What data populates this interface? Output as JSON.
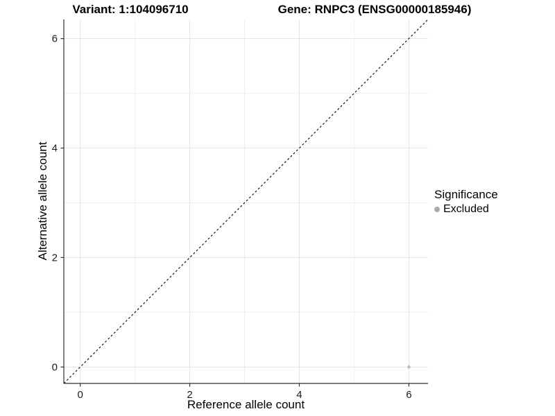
{
  "header": {
    "title_variant": "Variant: 1:104096710",
    "title_gene": "Gene: RNPC3 (ENSG00000185946)"
  },
  "chart_data": {
    "type": "scatter",
    "title_left": "Variant: 1:104096710",
    "title_right": "Gene: RNPC3 (ENSG00000185946)",
    "xlabel": "Reference allele count",
    "ylabel": "Alternative allele count",
    "xlim": [
      -0.3,
      6.35
    ],
    "ylim": [
      -0.3,
      6.35
    ],
    "xticks": [
      0,
      2,
      4,
      6
    ],
    "yticks": [
      0,
      2,
      4,
      6
    ],
    "grid": {
      "major_at": [
        0,
        2,
        4,
        6
      ],
      "minor_at": [
        1,
        3,
        5
      ],
      "visible": true
    },
    "points": [
      {
        "x": 6,
        "y": 0,
        "series": "Excluded"
      }
    ],
    "identity_line": {
      "slope": 1,
      "intercept": 0,
      "style": "dashed"
    },
    "legend": {
      "title": "Significance",
      "position": "right",
      "items": [
        {
          "label": "Excluded",
          "color": "#ACACAC"
        }
      ]
    },
    "colors": {
      "background": "#FFFFFF",
      "grid_major": "#E3E3E3",
      "grid_minor": "#EFEFEF",
      "axis": "#2F2F2F",
      "tick_label": "#1A1A1A",
      "identity_line": "#000000",
      "point": "#BCBCBC"
    },
    "point_radius": 2.3,
    "legend_swatch_radius": 4
  }
}
